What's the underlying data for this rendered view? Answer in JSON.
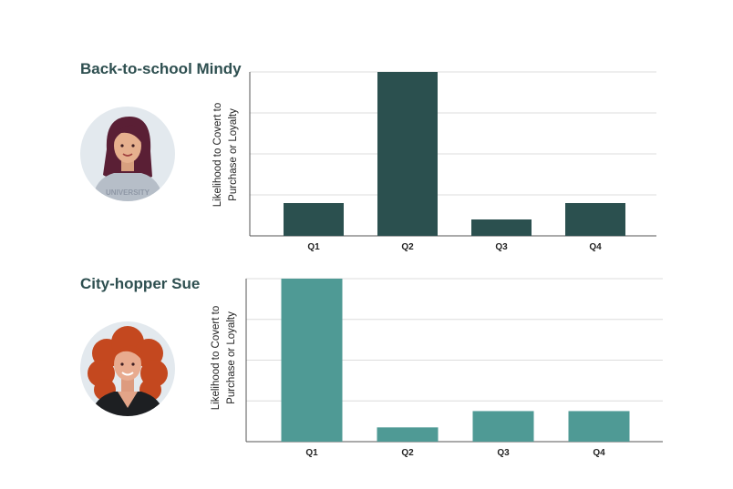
{
  "personas": [
    {
      "name": "Back-to-school Mindy",
      "avatar_icon": "woman-dark-hair-avatar-icon",
      "shirt_text": "UNIVERSITY"
    },
    {
      "name": "City-hopper Sue",
      "avatar_icon": "woman-curly-red-hair-avatar-icon"
    }
  ],
  "chart_data": [
    {
      "type": "bar",
      "categories": [
        "Q1",
        "Q2",
        "Q3",
        "Q4"
      ],
      "values": [
        0.8,
        4.0,
        0.4,
        0.8
      ],
      "ylim": [
        0,
        4
      ],
      "grid": true,
      "ylabel_lines": [
        "Likelihood to Covert to",
        "Purchase or Loyalty"
      ],
      "color": "#2b504f"
    },
    {
      "type": "bar",
      "categories": [
        "Q1",
        "Q2",
        "Q3",
        "Q4"
      ],
      "values": [
        4.0,
        0.35,
        0.75,
        0.75
      ],
      "ylim": [
        0,
        4
      ],
      "grid": true,
      "ylabel_lines": [
        "Likelihood to Covert to",
        "Purchase or Loyalty"
      ],
      "color": "#4f9a95"
    }
  ]
}
